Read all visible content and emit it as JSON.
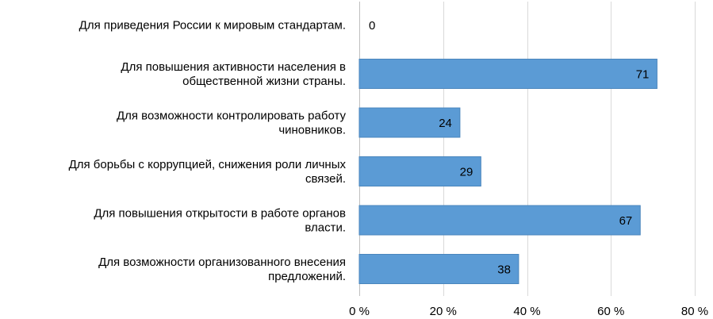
{
  "chart_data": {
    "type": "bar",
    "orientation": "horizontal",
    "categories": [
      [
        "Для приведения России к мировым стандартам."
      ],
      [
        "Для повышения активности населения в",
        "общественной жизни страны."
      ],
      [
        "Для возможности контролировать работу",
        "чиновников."
      ],
      [
        "Для борьбы с коррупцией, снижения роли личных",
        "связей."
      ],
      [
        "Для повышения открытости в работе органов",
        "власти."
      ],
      [
        "Для возможности организованного внесения",
        "предложений."
      ]
    ],
    "values": [
      0,
      71,
      24,
      29,
      67,
      38
    ],
    "value_labels": [
      "0",
      "71",
      "24",
      "29",
      "67",
      "38"
    ],
    "xlim": [
      0,
      80
    ],
    "x_ticks": [
      0,
      20,
      40,
      60,
      80
    ],
    "x_tick_labels": [
      "0 %",
      "20 %",
      "40 %",
      "60 %",
      "80 %"
    ],
    "grid": true,
    "colors": {
      "bar": "#5b9bd5",
      "bar_edge": "#4a86bd",
      "grid": "#d9d9d9",
      "axis": "#bfbfbf"
    }
  }
}
